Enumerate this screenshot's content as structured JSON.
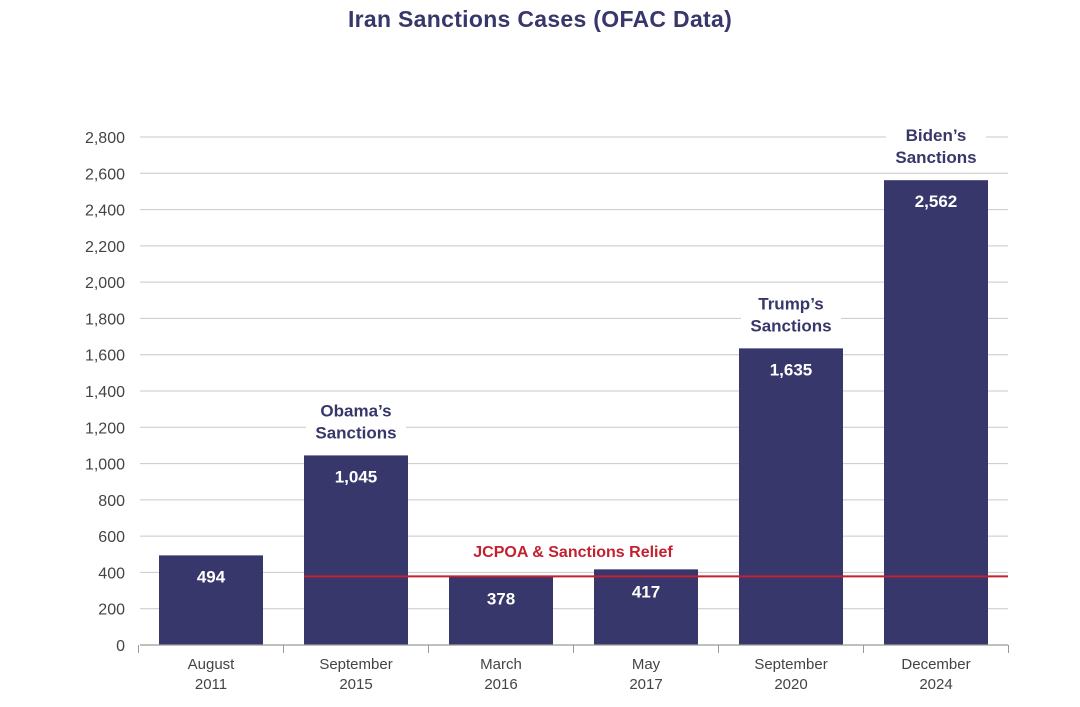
{
  "title": "Iran Sanctions Cases (OFAC Data)",
  "colors": {
    "bar": "#37376b",
    "grid": "#c8c8c8",
    "relief_line": "#c32030",
    "text": "#444444"
  },
  "chart_data": {
    "type": "bar",
    "title": "Iran Sanctions Cases (OFAC Data)",
    "xlabel": "",
    "ylabel": "",
    "ylim": [
      0,
      2800
    ],
    "yticks": [
      0,
      200,
      400,
      600,
      800,
      1000,
      1200,
      1400,
      1600,
      1800,
      2000,
      2200,
      2400,
      2600,
      2800
    ],
    "ytick_labels": [
      "0",
      "200",
      "400",
      "600",
      "800",
      "1,000",
      "1,200",
      "1,400",
      "1,600",
      "1,800",
      "2,000",
      "2,200",
      "2,400",
      "2,600",
      "2,800"
    ],
    "grid": true,
    "categories": [
      [
        "August",
        "2011"
      ],
      [
        "September",
        "2015"
      ],
      [
        "March",
        "2016"
      ],
      [
        "May",
        "2017"
      ],
      [
        "September",
        "2020"
      ],
      [
        "December",
        "2024"
      ]
    ],
    "values": [
      494,
      1045,
      378,
      417,
      1635,
      2562
    ],
    "value_labels": [
      "494",
      "1,045",
      "378",
      "417",
      "1,635",
      "2,562"
    ],
    "annotations": [
      {
        "bar_index": 1,
        "lines": [
          "Obama’s",
          "Sanctions"
        ]
      },
      {
        "bar_index": 4,
        "lines": [
          "Trump’s",
          "Sanctions"
        ]
      },
      {
        "bar_index": 5,
        "lines": [
          "Biden’s",
          "Sanctions"
        ]
      }
    ],
    "reference_line": {
      "value": 378,
      "label": "JCPOA & Sanctions Relief"
    }
  }
}
